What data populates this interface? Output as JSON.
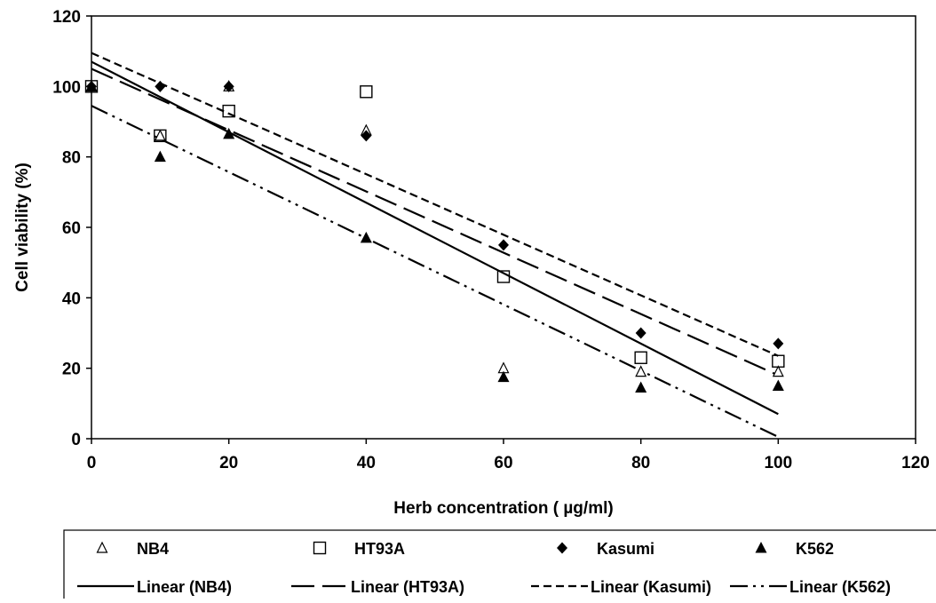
{
  "chart_data": {
    "type": "scatter",
    "xlabel": "Herb concentration  ( µg/ml)",
    "ylabel": "Cell viability (%)",
    "xlim": [
      0,
      120
    ],
    "ylim": [
      0,
      120
    ],
    "xticks": [
      0,
      20,
      40,
      60,
      80,
      100,
      120
    ],
    "yticks": [
      0,
      20,
      40,
      60,
      80,
      100,
      120
    ],
    "grid": false,
    "legend_position": "bottom",
    "series": [
      {
        "name": "NB4",
        "marker": "open-triangle",
        "color": "#000000",
        "x": [
          0,
          10,
          20,
          40,
          60,
          80,
          100
        ],
        "y": [
          100,
          86,
          100,
          87.5,
          20,
          19,
          19
        ]
      },
      {
        "name": "HT93A",
        "marker": "open-square",
        "color": "#000000",
        "x": [
          0,
          10,
          20,
          40,
          60,
          80,
          100
        ],
        "y": [
          100,
          86,
          93,
          98.5,
          46,
          23,
          22
        ]
      },
      {
        "name": "Kasumi",
        "marker": "filled-diamond",
        "color": "#000000",
        "x": [
          0,
          10,
          20,
          40,
          60,
          80,
          100
        ],
        "y": [
          100,
          100,
          100,
          86,
          55,
          30,
          27
        ]
      },
      {
        "name": "K562",
        "marker": "filled-triangle",
        "color": "#000000",
        "x": [
          0,
          10,
          20,
          40,
          60,
          80,
          100
        ],
        "y": [
          100,
          80,
          86.5,
          57,
          17.5,
          14.5,
          15
        ]
      }
    ],
    "trendlines": [
      {
        "name": "Linear (NB4)",
        "style": "solid",
        "x": [
          0,
          100
        ],
        "y": [
          107,
          7
        ]
      },
      {
        "name": "Linear (HT93A)",
        "style": "long-dash",
        "x": [
          0,
          100
        ],
        "y": [
          105,
          18
        ]
      },
      {
        "name": "Linear (Kasumi)",
        "style": "short-dash",
        "x": [
          0,
          100
        ],
        "y": [
          109.5,
          23.5
        ]
      },
      {
        "name": "Linear (K562)",
        "style": "dash-dot-dot",
        "x": [
          0,
          100
        ],
        "y": [
          94.5,
          0.5
        ]
      }
    ]
  }
}
